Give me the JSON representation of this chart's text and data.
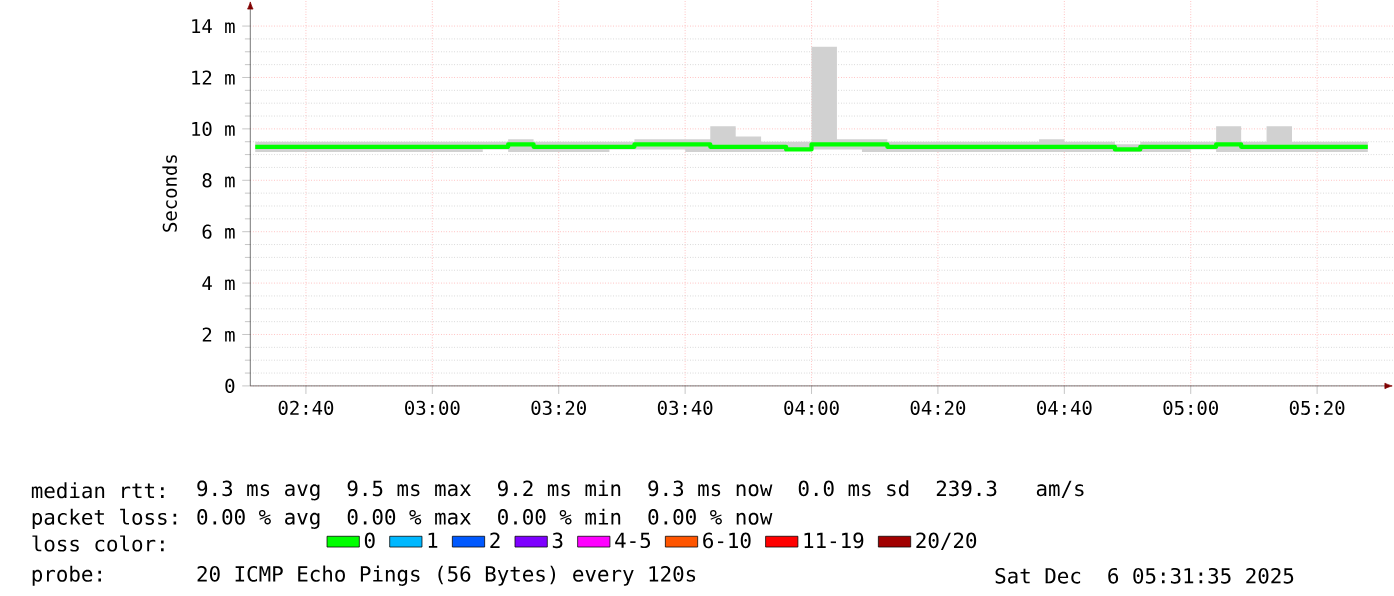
{
  "chart_data": {
    "type": "step",
    "ylabel": "Seconds",
    "legend_title": "loss color:",
    "legend": "bottom",
    "grid": true,
    "xlim": [
      2.52,
      5.535
    ],
    "ylim": [
      0,
      15
    ],
    "xticks": [
      {
        "value": 2.6667,
        "label": "02:40"
      },
      {
        "value": 3,
        "label": "03:00"
      },
      {
        "value": 3.3333,
        "label": "03:20"
      },
      {
        "value": 3.6667,
        "label": "03:40"
      },
      {
        "value": 4,
        "label": "04:00"
      },
      {
        "value": 4.3333,
        "label": "04:20"
      },
      {
        "value": 4.6667,
        "label": "04:40"
      },
      {
        "value": 5,
        "label": "05:00"
      },
      {
        "value": 5.3333,
        "label": "05:20"
      }
    ],
    "yticks": [
      0,
      {
        "value": 2,
        "label": "2 m"
      },
      {
        "value": 4,
        "label": "4 m"
      },
      {
        "value": 6,
        "label": "6 m"
      },
      {
        "value": 8,
        "label": "8 m"
      },
      {
        "value": 10,
        "label": "10 m"
      },
      {
        "value": 12,
        "label": "12 m"
      },
      {
        "value": 14,
        "label": "14 m"
      }
    ],
    "x": [
      2.533,
      2.6,
      2.667,
      2.733,
      2.8,
      2.867,
      2.933,
      3.0,
      3.067,
      3.133,
      3.2,
      3.267,
      3.333,
      3.4,
      3.467,
      3.533,
      3.6,
      3.667,
      3.733,
      3.8,
      3.867,
      3.933,
      4.0,
      4.067,
      4.133,
      4.2,
      4.267,
      4.333,
      4.4,
      4.467,
      4.533,
      4.6,
      4.667,
      4.733,
      4.8,
      4.867,
      4.933,
      5.0,
      5.067,
      5.133,
      5.2,
      5.267,
      5.333,
      5.4,
      5.467
    ],
    "series": [
      {
        "name": "0",
        "color": "#00ff00",
        "values": [
          9.3,
          9.3,
          9.3,
          9.3,
          9.3,
          9.3,
          9.3,
          9.3,
          9.3,
          9.3,
          9.4,
          9.3,
          9.3,
          9.3,
          9.3,
          9.4,
          9.4,
          9.4,
          9.3,
          9.3,
          9.3,
          9.2,
          9.4,
          9.4,
          9.4,
          9.3,
          9.3,
          9.3,
          9.3,
          9.3,
          9.3,
          9.3,
          9.3,
          9.3,
          9.2,
          9.3,
          9.3,
          9.3,
          9.4,
          9.3,
          9.3,
          9.3,
          9.3,
          9.3,
          9.3
        ],
        "lower": [
          9.1,
          9.1,
          9.1,
          9.1,
          9.1,
          9.1,
          9.1,
          9.1,
          9.1,
          9.1,
          9.2,
          9.1,
          9.1,
          9.1,
          9.1,
          9.2,
          9.2,
          9.2,
          9.1,
          9.1,
          9.1,
          9.1,
          9.2,
          9.2,
          9.2,
          9.1,
          9.1,
          9.1,
          9.1,
          9.1,
          9.1,
          9.1,
          9.1,
          9.1,
          9.1,
          9.1,
          9.1,
          9.1,
          9.2,
          9.1,
          9.1,
          9.1,
          9.1,
          9.1,
          9.1
        ],
        "upper": [
          9.5,
          9.5,
          9.5,
          9.5,
          9.5,
          9.5,
          9.5,
          9.5,
          9.5,
          9.5,
          9.6,
          9.5,
          9.5,
          9.5,
          9.5,
          9.6,
          9.6,
          9.6,
          10.1,
          9.7,
          9.5,
          9.5,
          13.2,
          9.6,
          9.6,
          9.5,
          9.5,
          9.5,
          9.5,
          9.5,
          9.5,
          9.6,
          9.5,
          9.5,
          9.4,
          9.5,
          9.5,
          9.5,
          10.1,
          9.5,
          10.1,
          9.5,
          9.5,
          9.5,
          9.5
        ]
      },
      {
        "name": "1",
        "color": "#00b8ff",
        "values": [
          null,
          null,
          null,
          null,
          null,
          null,
          null,
          null,
          null,
          null,
          null,
          null,
          null,
          null,
          null,
          null,
          null,
          null,
          null,
          null,
          null,
          null,
          null,
          null,
          null,
          null,
          null,
          null,
          null,
          null,
          null,
          null,
          null,
          null,
          null,
          null,
          null,
          null,
          null,
          null,
          null,
          null,
          null,
          null,
          null
        ]
      },
      {
        "name": "2",
        "color": "#0059ff",
        "values": [
          null,
          null,
          null,
          null,
          null,
          null,
          null,
          null,
          null,
          null,
          null,
          null,
          null,
          null,
          null,
          null,
          null,
          null,
          null,
          null,
          null,
          null,
          null,
          null,
          null,
          null,
          null,
          null,
          null,
          null,
          null,
          null,
          null,
          null,
          null,
          null,
          null,
          null,
          null,
          null,
          null,
          null,
          null,
          null,
          null
        ]
      },
      {
        "name": "3",
        "color": "#7e00ff",
        "values": [
          null,
          null,
          null,
          null,
          null,
          null,
          null,
          null,
          null,
          null,
          null,
          null,
          null,
          null,
          null,
          null,
          null,
          null,
          null,
          null,
          null,
          null,
          null,
          null,
          null,
          null,
          null,
          null,
          null,
          null,
          null,
          null,
          null,
          null,
          null,
          null,
          null,
          null,
          null,
          null,
          null,
          null,
          null,
          null,
          null
        ]
      },
      {
        "name": "4-5",
        "color": "#ff00ff",
        "values": [
          null,
          null,
          null,
          null,
          null,
          null,
          null,
          null,
          null,
          null,
          null,
          null,
          null,
          null,
          null,
          null,
          null,
          null,
          null,
          null,
          null,
          null,
          null,
          null,
          null,
          null,
          null,
          null,
          null,
          null,
          null,
          null,
          null,
          null,
          null,
          null,
          null,
          null,
          null,
          null,
          null,
          null,
          null,
          null,
          null
        ]
      },
      {
        "name": "6-10",
        "color": "#ff5500",
        "values": [
          null,
          null,
          null,
          null,
          null,
          null,
          null,
          null,
          null,
          null,
          null,
          null,
          null,
          null,
          null,
          null,
          null,
          null,
          null,
          null,
          null,
          null,
          null,
          null,
          null,
          null,
          null,
          null,
          null,
          null,
          null,
          null,
          null,
          null,
          null,
          null,
          null,
          null,
          null,
          null,
          null,
          null,
          null,
          null,
          null
        ]
      },
      {
        "name": "11-19",
        "color": "#ff0000",
        "values": [
          null,
          null,
          null,
          null,
          null,
          null,
          null,
          null,
          null,
          null,
          null,
          null,
          null,
          null,
          null,
          null,
          null,
          null,
          null,
          null,
          null,
          null,
          null,
          null,
          null,
          null,
          null,
          null,
          null,
          null,
          null,
          null,
          null,
          null,
          null,
          null,
          null,
          null,
          null,
          null,
          null,
          null,
          null,
          null,
          null
        ]
      },
      {
        "name": "20/20",
        "color": "#a10000",
        "values": [
          null,
          null,
          null,
          null,
          null,
          null,
          null,
          null,
          null,
          null,
          null,
          null,
          null,
          null,
          null,
          null,
          null,
          null,
          null,
          null,
          null,
          null,
          null,
          null,
          null,
          null,
          null,
          null,
          null,
          null,
          null,
          null,
          null,
          null,
          null,
          null,
          null,
          null,
          null,
          null,
          null,
          null,
          null,
          null,
          null
        ]
      }
    ],
    "annotations": [
      "median rtt:",
      "9.3 ms avg  9.5 ms max  9.2 ms min  9.3 ms now  0.0 ms sd  239.3   am/s",
      "packet loss:",
      "0.00 % avg  0.00 % max  0.00 % min  0.00 % now",
      "probe:",
      "20 ICMP Echo Pings (56 Bytes) every 120s",
      "Sat Dec  6 05:31:35 2025"
    ]
  }
}
